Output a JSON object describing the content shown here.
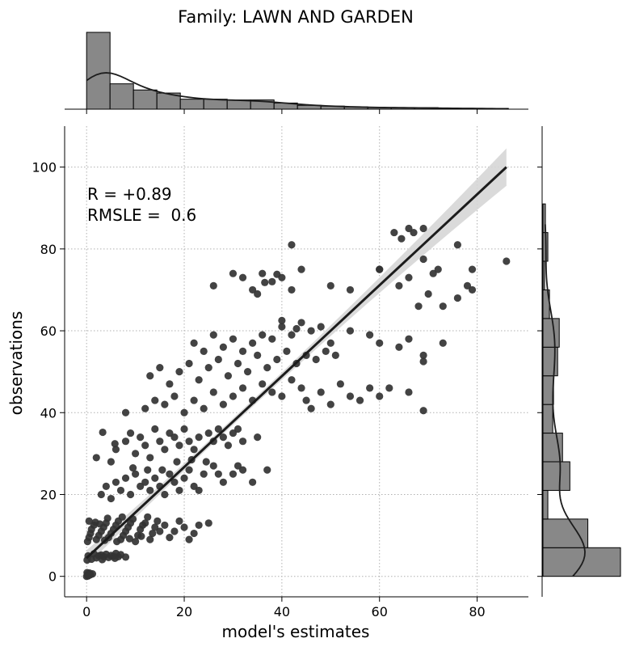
{
  "chart_data": {
    "type": "scatter",
    "title": "Family: LAWN AND GARDEN",
    "xlabel": "model's estimates",
    "ylabel": "observations",
    "xlim": [
      -4.5,
      90.5
    ],
    "ylim": [
      -5,
      110
    ],
    "xticks": [
      0,
      20,
      40,
      60,
      80
    ],
    "yticks": [
      0,
      20,
      40,
      60,
      80,
      100
    ],
    "grid": true,
    "annotations": [
      "R = +0.89",
      "RMSLE =  0.6"
    ],
    "regression": {
      "x": [
        0,
        86
      ],
      "y": [
        4.5,
        100
      ]
    },
    "points": [
      [
        0,
        0
      ],
      [
        0.2,
        0.5
      ],
      [
        0.4,
        0.2
      ],
      [
        0.6,
        0.8
      ],
      [
        1.2,
        0.6
      ],
      [
        0.1,
        0.9
      ],
      [
        0.3,
        0.1
      ],
      [
        0.8,
        0.4
      ],
      [
        0.1,
        4
      ],
      [
        0.3,
        5
      ],
      [
        1,
        4.2
      ],
      [
        1.5,
        5.5
      ],
      [
        2,
        4.5
      ],
      [
        2.5,
        5
      ],
      [
        3,
        5.2
      ],
      [
        3.5,
        4.8
      ],
      [
        4,
        5.4
      ],
      [
        4.5,
        4.6
      ],
      [
        5,
        5.1
      ],
      [
        5.5,
        4.9
      ],
      [
        6,
        5.6
      ],
      [
        6.5,
        4.8
      ],
      [
        7,
        5.3
      ],
      [
        8,
        4.7
      ],
      [
        3.2,
        4.1
      ],
      [
        5.8,
        4.4
      ],
      [
        0.2,
        8.5
      ],
      [
        0.5,
        9.5
      ],
      [
        0.8,
        10.5
      ],
      [
        1,
        11.5
      ],
      [
        1.5,
        12.5
      ],
      [
        2,
        9
      ],
      [
        2.5,
        10
      ],
      [
        3,
        11
      ],
      [
        3.5,
        12
      ],
      [
        4,
        13
      ],
      [
        4.5,
        9.5
      ],
      [
        5,
        10.5
      ],
      [
        5.5,
        11.5
      ],
      [
        6,
        12.5
      ],
      [
        6.5,
        13.5
      ],
      [
        7,
        9
      ],
      [
        7.5,
        10
      ],
      [
        8,
        11
      ],
      [
        8.5,
        12
      ],
      [
        9,
        13
      ],
      [
        9.5,
        14
      ],
      [
        10,
        8.5
      ],
      [
        10.5,
        10
      ],
      [
        11,
        11.5
      ],
      [
        11.5,
        12.5
      ],
      [
        12,
        13
      ],
      [
        12.5,
        14.5
      ],
      [
        13,
        9
      ],
      [
        13.5,
        10.5
      ],
      [
        14,
        12
      ],
      [
        14.5,
        13.5
      ],
      [
        15,
        11
      ],
      [
        16,
        12.5
      ],
      [
        17,
        9.5
      ],
      [
        18,
        11
      ],
      [
        19,
        13.5
      ],
      [
        20,
        12
      ],
      [
        21,
        9
      ],
      [
        22,
        10.5
      ],
      [
        23,
        12.5
      ],
      [
        25,
        13
      ],
      [
        3.7,
        8.8
      ],
      [
        6.2,
        8.5
      ],
      [
        8.8,
        9.2
      ],
      [
        11.2,
        9.8
      ],
      [
        1.8,
        13.2
      ],
      [
        4.3,
        14.2
      ],
      [
        7.3,
        14.5
      ],
      [
        0.5,
        13.5
      ],
      [
        2.7,
        12.8
      ],
      [
        3,
        20
      ],
      [
        4,
        22
      ],
      [
        5,
        19
      ],
      [
        6,
        23
      ],
      [
        7,
        21
      ],
      [
        8,
        24
      ],
      [
        9,
        20
      ],
      [
        10,
        25
      ],
      [
        11,
        22
      ],
      [
        12,
        23
      ],
      [
        13,
        21
      ],
      [
        14,
        24
      ],
      [
        15,
        22
      ],
      [
        16,
        20
      ],
      [
        17,
        25
      ],
      [
        18,
        23
      ],
      [
        19,
        21
      ],
      [
        20,
        24
      ],
      [
        21,
        26
      ],
      [
        22,
        22
      ],
      [
        23,
        21
      ],
      [
        24,
        25
      ],
      [
        26,
        27
      ],
      [
        27,
        25
      ],
      [
        28,
        23
      ],
      [
        30,
        25
      ],
      [
        31,
        27
      ],
      [
        32,
        26
      ],
      [
        34,
        23
      ],
      [
        37,
        26
      ],
      [
        9.5,
        26.5
      ],
      [
        12.5,
        26
      ],
      [
        15.5,
        26
      ],
      [
        18.5,
        28
      ],
      [
        21.5,
        28.5
      ],
      [
        24.5,
        28
      ],
      [
        2,
        29
      ],
      [
        5,
        28
      ],
      [
        6,
        31
      ],
      [
        8,
        33
      ],
      [
        9,
        35
      ],
      [
        10,
        30
      ],
      [
        11,
        34
      ],
      [
        12,
        32
      ],
      [
        13,
        29
      ],
      [
        14,
        36
      ],
      [
        15,
        33
      ],
      [
        16,
        31
      ],
      [
        17,
        35
      ],
      [
        18,
        34
      ],
      [
        19,
        32
      ],
      [
        20,
        36
      ],
      [
        21,
        33
      ],
      [
        22,
        31
      ],
      [
        23,
        34
      ],
      [
        25,
        35
      ],
      [
        26,
        33
      ],
      [
        27,
        36
      ],
      [
        28,
        34
      ],
      [
        29,
        32
      ],
      [
        30,
        35
      ],
      [
        31,
        36
      ],
      [
        32,
        33
      ],
      [
        35,
        34
      ],
      [
        3.3,
        35.2
      ],
      [
        5.8,
        32.4
      ],
      [
        8,
        40
      ],
      [
        12,
        41
      ],
      [
        14,
        43
      ],
      [
        16,
        42
      ],
      [
        18,
        44
      ],
      [
        20,
        40
      ],
      [
        22,
        43
      ],
      [
        24,
        41
      ],
      [
        26,
        45
      ],
      [
        28,
        42
      ],
      [
        30,
        44
      ],
      [
        32,
        46
      ],
      [
        34,
        43
      ],
      [
        36,
        47
      ],
      [
        38,
        45
      ],
      [
        40,
        44
      ],
      [
        42,
        48
      ],
      [
        44,
        46
      ],
      [
        45,
        43
      ],
      [
        46,
        41
      ],
      [
        48,
        45
      ],
      [
        50,
        42
      ],
      [
        52,
        47
      ],
      [
        54,
        44
      ],
      [
        56,
        43
      ],
      [
        58,
        46
      ],
      [
        60,
        44
      ],
      [
        62,
        46
      ],
      [
        66,
        45
      ],
      [
        69,
        40.5
      ],
      [
        13,
        49
      ],
      [
        15,
        51
      ],
      [
        17,
        47
      ],
      [
        19,
        50
      ],
      [
        21,
        52
      ],
      [
        23,
        48
      ],
      [
        25,
        51
      ],
      [
        27,
        53
      ],
      [
        29,
        49
      ],
      [
        31,
        52
      ],
      [
        33,
        50
      ],
      [
        35,
        54
      ],
      [
        37,
        51
      ],
      [
        39,
        53
      ],
      [
        41,
        55
      ],
      [
        43,
        52
      ],
      [
        45,
        54
      ],
      [
        47,
        53
      ],
      [
        49,
        55
      ],
      [
        51,
        54
      ],
      [
        22,
        57
      ],
      [
        24,
        55
      ],
      [
        26,
        59
      ],
      [
        28,
        56
      ],
      [
        30,
        58
      ],
      [
        32,
        55
      ],
      [
        34,
        57
      ],
      [
        36,
        59
      ],
      [
        38,
        58
      ],
      [
        40,
        61
      ],
      [
        42,
        59
      ],
      [
        44,
        62
      ],
      [
        46,
        60
      ],
      [
        48,
        61
      ],
      [
        50,
        57
      ],
      [
        54,
        60
      ],
      [
        58,
        59
      ],
      [
        60,
        57
      ],
      [
        64,
        56
      ],
      [
        66,
        58
      ],
      [
        69,
        54
      ],
      [
        73,
        57
      ],
      [
        40,
        62.5
      ],
      [
        43,
        60.5
      ],
      [
        69,
        52.5
      ],
      [
        26,
        71
      ],
      [
        30,
        74
      ],
      [
        32,
        73
      ],
      [
        34,
        70
      ],
      [
        36,
        74
      ],
      [
        38,
        72
      ],
      [
        40,
        73
      ],
      [
        42,
        70
      ],
      [
        44,
        75
      ],
      [
        50,
        71
      ],
      [
        54,
        70
      ],
      [
        60,
        75
      ],
      [
        64,
        71
      ],
      [
        66,
        73
      ],
      [
        68,
        66
      ],
      [
        70,
        69
      ],
      [
        72,
        75
      ],
      [
        73,
        66
      ],
      [
        76,
        68
      ],
      [
        78,
        71
      ],
      [
        79,
        70
      ],
      [
        35,
        69
      ],
      [
        39,
        73.8
      ],
      [
        42,
        81
      ],
      [
        60,
        75
      ],
      [
        63,
        84
      ],
      [
        66,
        85
      ],
      [
        67,
        84
      ],
      [
        69,
        85
      ],
      [
        76,
        81
      ],
      [
        79,
        75
      ],
      [
        86,
        77
      ],
      [
        69,
        77.5
      ],
      [
        71,
        74
      ],
      [
        64.5,
        82.5
      ],
      [
        36.5,
        71.8
      ]
    ],
    "top_histogram": {
      "bin_edges": [
        0,
        4.8,
        9.6,
        14.4,
        19.2,
        24,
        28.8,
        33.6,
        38.4,
        43.2,
        48,
        52.8,
        57.6,
        62.4,
        67.2,
        72,
        76.8,
        81.6,
        86.4
      ],
      "counts": [
        100,
        33,
        25,
        21,
        13,
        13,
        12,
        12,
        8,
        5,
        4,
        3,
        2,
        2,
        2,
        1,
        1,
        1
      ]
    },
    "right_histogram": {
      "bin_edges": [
        0,
        7,
        14,
        21,
        28,
        35,
        42,
        49,
        56,
        63,
        70,
        77,
        84,
        91
      ],
      "counts": [
        95,
        55,
        6,
        33,
        24,
        12,
        13,
        18,
        20,
        8,
        2,
        6,
        3
      ]
    },
    "marker_color": "#333333",
    "line_color": "#1c1c1c",
    "hist_color": "#888888"
  }
}
